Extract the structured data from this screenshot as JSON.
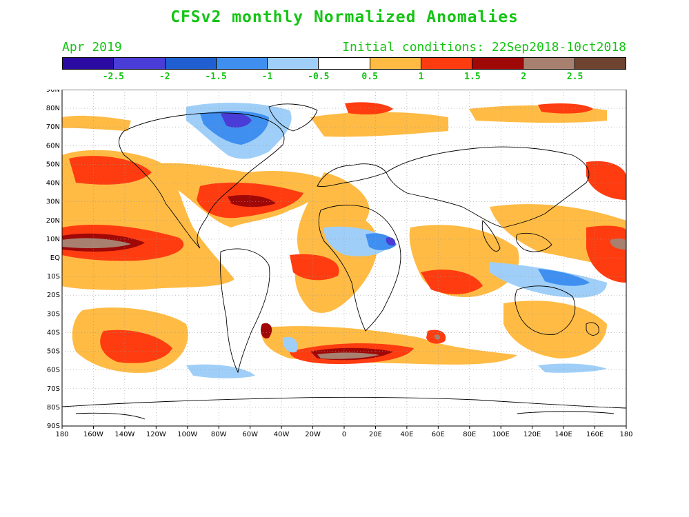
{
  "title": "CFSv2 monthly Normalized Anomalies",
  "forecast_month": "Apr 2019",
  "initial_conditions": "Initial conditions: 22Sep2018-10ct2018",
  "colorbar": {
    "colors": [
      "#2a0aa0",
      "#4a3cd6",
      "#1f5fd2",
      "#3f8ff0",
      "#9fcff8",
      "#ffffff",
      "#ffbb44",
      "#ff3c10",
      "#a00808",
      "#a88070",
      "#6e4430"
    ],
    "labels": [
      "-2.5",
      "-2",
      "-1.5",
      "-1",
      "-0.5",
      "0.5",
      "1",
      "1.5",
      "2",
      "2.5"
    ]
  },
  "axes": {
    "lon_labels": [
      "180",
      "160W",
      "140W",
      "120W",
      "100W",
      "80W",
      "60W",
      "40W",
      "20W",
      "0",
      "20E",
      "40E",
      "60E",
      "80E",
      "100E",
      "120E",
      "140E",
      "160E",
      "180"
    ],
    "lat_labels": [
      "90N",
      "80N",
      "70N",
      "60N",
      "50N",
      "40N",
      "30N",
      "20N",
      "10N",
      "EQ",
      "10S",
      "20S",
      "30S",
      "40S",
      "50S",
      "60S",
      "70S",
      "80S",
      "90S"
    ]
  }
}
